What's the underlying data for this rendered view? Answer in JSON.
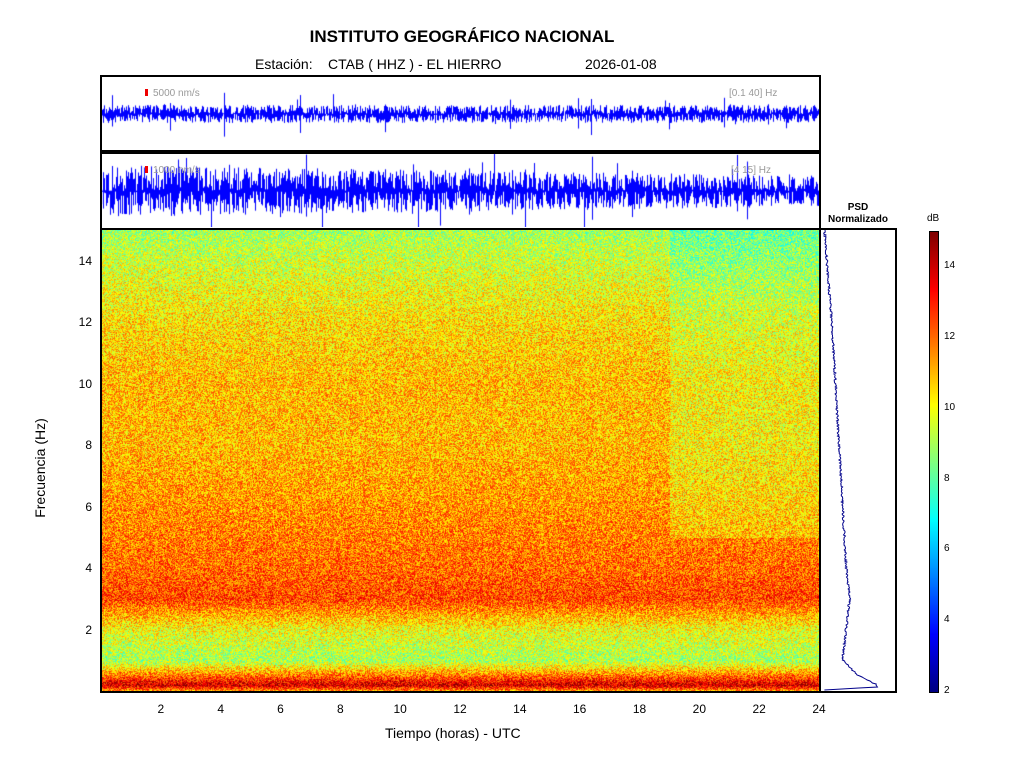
{
  "header": {
    "title": "INSTITUTO GEOGRÁFICO NACIONAL",
    "station_label": "Estación:",
    "station": "CTAB ( HHZ ) - EL HIERRO",
    "date": "2026-01-08"
  },
  "traces": [
    {
      "scale": "5000 nm/s",
      "band": "[0.1 40] Hz"
    },
    {
      "scale": "1000 nm/s",
      "band": "[4 15] Hz"
    }
  ],
  "psd": {
    "title1": "PSD",
    "title2": "Normalizado"
  },
  "colorbar": {
    "label": "dB",
    "ticks": [
      "2",
      "4",
      "6",
      "8",
      "10",
      "12",
      "14"
    ],
    "range": [
      2,
      15
    ],
    "colormap": "jet"
  },
  "chart_data": {
    "type": "heatmap",
    "xlabel": "Tiempo (horas) - UTC",
    "ylabel": "Frecuencia  (Hz)",
    "xlim": [
      0,
      24
    ],
    "ylim": [
      0,
      15
    ],
    "xticks": [
      "2",
      "4",
      "6",
      "8",
      "10",
      "12",
      "14",
      "16",
      "18",
      "20",
      "22",
      "24"
    ],
    "yticks": [
      "2",
      "4",
      "6",
      "8",
      "10",
      "12",
      "14"
    ],
    "freq_profile_db": {
      "freq": [
        0,
        0.2,
        0.5,
        1,
        1.5,
        2,
        3,
        4,
        6,
        8,
        10,
        12,
        14,
        15
      ],
      "db": [
        11,
        14,
        12,
        9,
        9.5,
        10,
        12.5,
        12,
        11.5,
        11,
        11,
        10.5,
        9.5,
        9
      ]
    },
    "psd_normalized": {
      "freq": [
        0,
        0.1,
        0.2,
        0.5,
        1,
        2,
        3,
        4,
        6,
        8,
        10,
        12,
        14,
        15
      ],
      "value": [
        0.05,
        0.8,
        0.75,
        0.5,
        0.3,
        0.35,
        0.4,
        0.35,
        0.3,
        0.25,
        0.2,
        0.15,
        0.08,
        0.05
      ]
    }
  }
}
